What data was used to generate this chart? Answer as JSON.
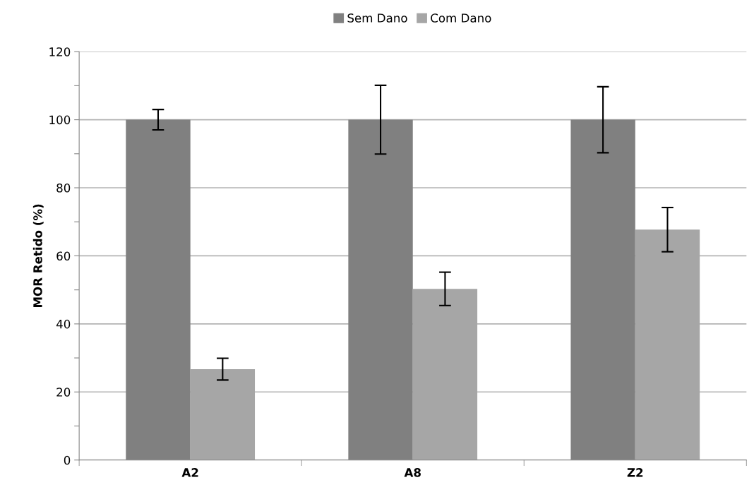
{
  "chart_data": {
    "type": "bar",
    "ylabel": "MOR Retido (%)",
    "categories": [
      "A2",
      "A8",
      "Z2"
    ],
    "series": [
      {
        "name": "Sem Dano",
        "color": "#808080",
        "values": [
          100,
          100,
          100
        ],
        "errors": [
          3,
          10.1,
          9.7
        ]
      },
      {
        "name": "Com Dano",
        "color": "#a6a6a6",
        "values": [
          26.7,
          50.3,
          67.7
        ],
        "errors": [
          3.2,
          4.9,
          6.5
        ]
      }
    ],
    "ylim": [
      0,
      120
    ],
    "yticks": [
      0,
      {
        "value": 10,
        "label": null
      },
      20,
      {
        "value": 30,
        "label": null
      },
      40,
      {
        "value": 50,
        "label": null
      },
      60,
      {
        "value": 70,
        "label": null
      },
      80,
      {
        "value": 90,
        "label": null
      },
      100,
      {
        "value": 110,
        "label": null
      },
      120
    ],
    "grid": "y",
    "legend": "top"
  }
}
